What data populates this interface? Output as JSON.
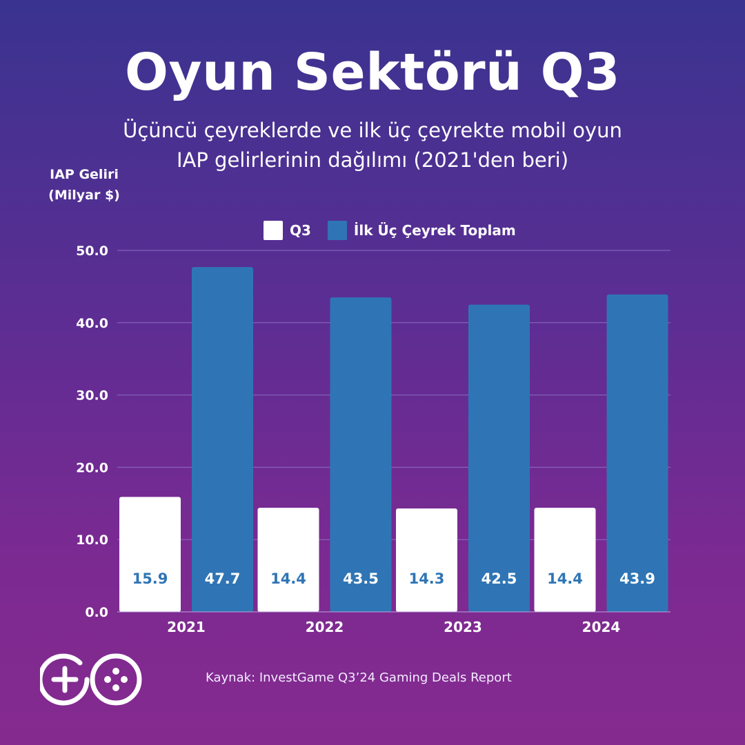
{
  "title": "Oyun Sektörü Q3",
  "subtitle_line1": "Üçüncü çeyreklerde ve ilk üç çeyrekte mobil oyun",
  "subtitle_line2": "IAP gelirlerinin  dağılımı (2021'den beri)",
  "source": "Kaynak: InvestGame Q3’24 Gaming Deals Report",
  "logo": {
    "icon": "gamepad-go-logo"
  },
  "colors": {
    "q3": "#ffffff",
    "total": "#2f75b5",
    "label": "#2f75b5",
    "grid": "#8a6fc0"
  },
  "chart_data": {
    "type": "bar",
    "ylabel_line1": "IAP Geliri",
    "ylabel_line2": "(Milyar $)",
    "categories": [
      "2021",
      "2022",
      "2023",
      "2024"
    ],
    "series": [
      {
        "name": "Q3",
        "values": [
          15.9,
          14.4,
          14.3,
          14.4
        ],
        "labels": [
          "15.9",
          "14.4",
          "14.3",
          "14.4"
        ]
      },
      {
        "name": "İlk Üç Çeyrek Toplam",
        "values": [
          47.7,
          43.5,
          42.5,
          43.9
        ],
        "labels": [
          "47.7",
          "43.5",
          "42.5",
          "43.9"
        ]
      }
    ],
    "ylim": [
      0,
      50
    ],
    "yticks": [
      "0.0",
      "10.0",
      "20.0",
      "30.0",
      "40.0",
      "50.0"
    ],
    "grid": true,
    "legend": "top"
  }
}
